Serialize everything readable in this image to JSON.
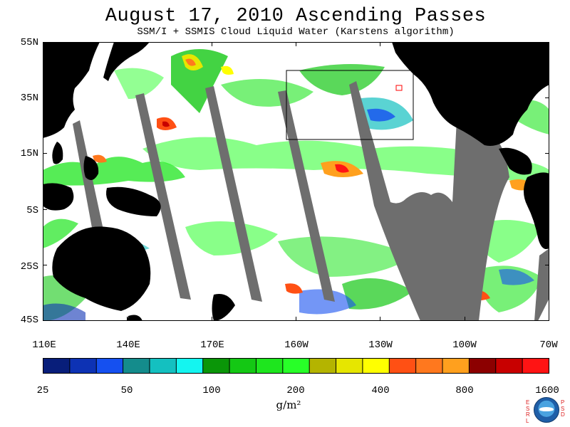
{
  "title": "August 17, 2010  Ascending Passes",
  "subtitle": "SSM/I + SSMIS Cloud Liquid Water (Karstens algorithm)",
  "map": {
    "lat_labels": [
      "55N",
      "35N",
      "15N",
      "5S",
      "25S",
      "45S"
    ],
    "lon_labels": [
      "110E",
      "140E",
      "170E",
      "160W",
      "130W",
      "100W",
      "70W"
    ],
    "ocean_color": "#ffffff",
    "land_color": "#000000",
    "no_data_color": "#6e6e6e",
    "region_box_color": "#000000"
  },
  "colorbar": {
    "colors": [
      "#081e7a",
      "#0d32b4",
      "#1550f0",
      "#148c8c",
      "#14c0c0",
      "#14f5f0",
      "#0a9608",
      "#14c814",
      "#1ee61e",
      "#28ff28",
      "#b4b400",
      "#e6e600",
      "#ffff00",
      "#ff5014",
      "#ff781e",
      "#ffa01e",
      "#8c0000",
      "#c80000",
      "#ff1414"
    ],
    "tick_labels": [
      "25",
      "50",
      "100",
      "200",
      "400",
      "800",
      "1600"
    ],
    "units": "g/m²"
  },
  "logo": {
    "left_letters": "ESRL",
    "right_letters": "PSD",
    "name": "noaa-logo"
  }
}
